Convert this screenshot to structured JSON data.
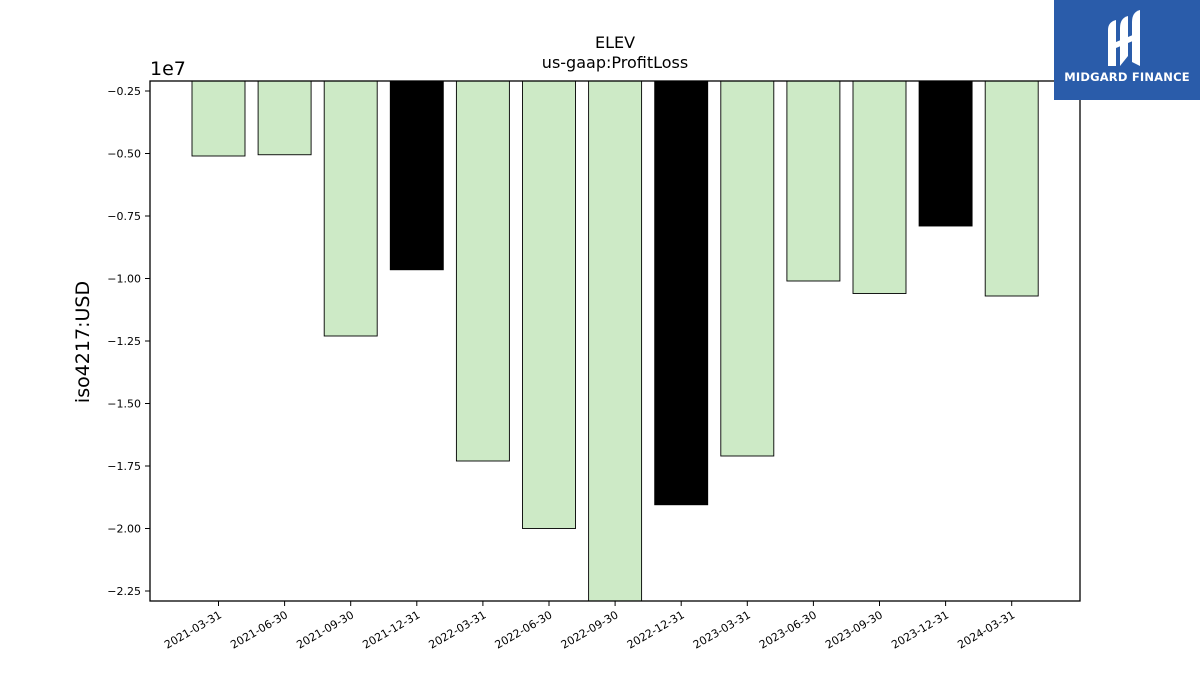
{
  "logo": {
    "name": "MIDGARD FINANCE",
    "icon": "midgard-logo-icon",
    "bg_color": "#2a5caa"
  },
  "chart_data": {
    "type": "bar",
    "title": "ELEV",
    "subtitle": "us-gaap:ProfitLoss",
    "ylabel": "iso4217:USD",
    "xlabel": "",
    "offset_label": "1e7",
    "ylim": [
      -2.29,
      -0.21
    ],
    "yticks": [
      -0.25,
      -0.5,
      -0.75,
      -1.0,
      -1.25,
      -1.5,
      -1.75,
      -2.0,
      -2.25
    ],
    "ytick_labels": [
      "−0.25",
      "−0.50",
      "−0.75",
      "−1.00",
      "−1.25",
      "−1.50",
      "−1.75",
      "−2.00",
      "−2.25"
    ],
    "categories": [
      "2021-03-31",
      "2021-06-30",
      "2021-09-30",
      "2021-12-31",
      "2022-03-31",
      "2022-06-30",
      "2022-09-30",
      "2022-12-31",
      "2023-03-31",
      "2023-06-30",
      "2023-09-30",
      "2023-12-31",
      "2024-03-31"
    ],
    "values": [
      -5100000,
      -5050000,
      -12300000,
      -9650000,
      -17300000,
      -20000000,
      -22900000,
      -19050000,
      -17100000,
      -10100000,
      -10600000,
      -7900000,
      -10700000
    ],
    "bar_colors": [
      "#cdeac6",
      "#cdeac6",
      "#cdeac6",
      "#000000",
      "#cdeac6",
      "#cdeac6",
      "#cdeac6",
      "#000000",
      "#cdeac6",
      "#cdeac6",
      "#cdeac6",
      "#000000",
      "#cdeac6"
    ],
    "grid": false
  }
}
